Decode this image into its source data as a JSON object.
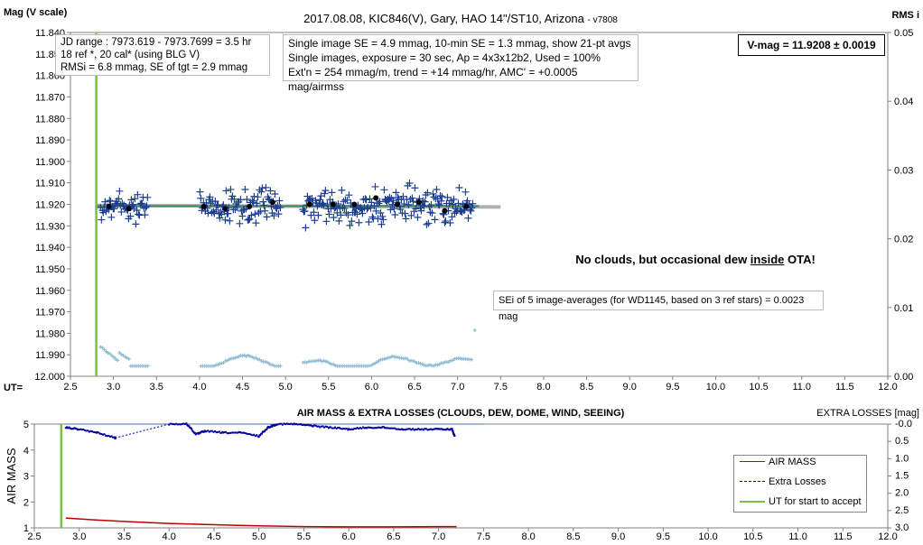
{
  "chart_data": [
    {
      "type": "scatter",
      "title": "2017.08.08,  KIC846(V),  Gary,  HAO 14\"/ST10, Arizona",
      "version": "- v7808",
      "ylabel": "Mag (V scale)",
      "y2label": "RMS i",
      "xlabel": "UT=",
      "xlim": [
        2.5,
        12.0
      ],
      "ylim": [
        11.84,
        12.0
      ],
      "y_inverted": true,
      "y2lim": [
        0,
        0.05
      ],
      "x_ticks": [
        "2.5",
        "3.0",
        "3.5",
        "4.0",
        "4.5",
        "5.0",
        "5.5",
        "6.0",
        "6.5",
        "7.0",
        "7.5",
        "8.0",
        "8.5",
        "9.0",
        "9.5",
        "10.0",
        "10.5",
        "11.0",
        "11.5",
        "12.0"
      ],
      "y_ticks": [
        "11.840",
        "11.850",
        "11.860",
        "11.870",
        "11.880",
        "11.890",
        "11.900",
        "11.910",
        "11.920",
        "11.930",
        "11.940",
        "11.950",
        "11.960",
        "11.970",
        "11.980",
        "11.990",
        "12.000"
      ],
      "y2_ticks": [
        "0.05",
        "0.04",
        "0.03",
        "0.02",
        "0.01",
        "0.00"
      ],
      "accept_start_ut": 2.8,
      "mean_mag": 11.9208,
      "fit_line": {
        "x_start": 2.8,
        "x_end": 7.5,
        "y_start": 11.9205,
        "y_end": 11.9212
      },
      "gaps": [
        [
          3.4,
          4.0
        ],
        [
          4.95,
          5.2
        ]
      ],
      "series": [
        {
          "role": "single images",
          "marker": "plus",
          "x_range": [
            2.85,
            7.18
          ],
          "y_range": [
            11.906,
            11.935
          ]
        },
        {
          "role": "21-pt avgs",
          "marker": "dot",
          "x": [
            2.95,
            3.18,
            4.05,
            4.3,
            4.58,
            4.85,
            5.28,
            5.55,
            5.8,
            6.05,
            6.3,
            6.55,
            6.85,
            7.1
          ],
          "y": [
            11.921,
            11.922,
            11.921,
            11.922,
            11.921,
            11.919,
            11.92,
            11.92,
            11.92,
            11.917,
            11.92,
            11.919,
            11.923,
            11.921
          ]
        },
        {
          "role": "RMS i",
          "axis": "right",
          "marker": "plus",
          "x_range": [
            2.85,
            7.18
          ],
          "y2_range": [
            0.0015,
            0.0045
          ]
        }
      ],
      "annotations": [
        "JD range : 7973.619 - 7973.7699 = 3.5 hr",
        "18 ref *, 20 cal* (using BLG V)",
        "RMSi = 6.8 mmag, SE of tgt = 2.9 mmag",
        "Single image SE = 4.9 mmag, 10-min SE = 1.3 mmag, show 21-pt avgs",
        "Single images, exposure = 30 sec, Ap = 4x3x12b2, Used = 100%",
        "Ext'n = 254 mmag/m, trend = +14 mmag/hr, AMC' = +0.0005 mag/airmss",
        "V-mag = 11.9208 ± 0.0019",
        "No clouds, but occasional dew inside OTA!",
        "SEi of 5 image-averages (for WD1145, based on 3 ref stars) = 0.0023 mag"
      ]
    },
    {
      "type": "line",
      "title": "AIR MASS & EXTRA LOSSES (CLOUDS, DEW, DOME, WIND, SEEING)",
      "ylabel": "AIR MASS",
      "y2label": "EXTRA LOSSES [mag]",
      "xlim": [
        2.5,
        12.0
      ],
      "ylim": [
        1,
        5
      ],
      "y2lim": [
        0.0,
        3.0
      ],
      "y2_inverted": true,
      "x_ticks": [
        "2.5",
        "3.0",
        "3.5",
        "4.0",
        "4.5",
        "5.0",
        "5.5",
        "6.0",
        "6.5",
        "7.0",
        "7.5",
        "8.0",
        "8.5",
        "9.0",
        "9.5",
        "10.0",
        "10.5",
        "11.0",
        "11.5",
        "12.0"
      ],
      "y_ticks": [
        "5",
        "4",
        "3",
        "2",
        "1"
      ],
      "y2_ticks": [
        "-0.0",
        "0.5",
        "1.0",
        "1.5",
        "2.0",
        "2.5",
        "3.0"
      ],
      "accept_start_ut": 2.8,
      "series": [
        {
          "name": "AIR MASS",
          "color": "#c00000",
          "x": [
            2.85,
            3.2,
            3.6,
            4.0,
            4.5,
            5.0,
            5.5,
            6.0,
            6.5,
            7.0,
            7.2
          ],
          "y": [
            1.38,
            1.3,
            1.23,
            1.17,
            1.12,
            1.08,
            1.05,
            1.04,
            1.04,
            1.05,
            1.05
          ]
        },
        {
          "name": "Extra Losses",
          "color": "#0000a0",
          "dashed": true,
          "x": [
            2.85,
            3.0,
            3.2,
            3.4,
            3.4,
            4.0,
            4.2,
            4.3,
            4.4,
            4.6,
            4.8,
            5.0,
            5.1,
            5.2,
            5.4,
            5.6,
            5.8,
            6.0,
            6.2,
            6.4,
            6.6,
            6.8,
            7.0,
            7.15,
            7.18
          ],
          "y2": [
            0.1,
            0.15,
            0.25,
            0.4,
            0.4,
            0.0,
            0.0,
            0.3,
            0.2,
            0.25,
            0.25,
            0.35,
            0.1,
            0.0,
            0.0,
            0.05,
            0.1,
            0.15,
            0.1,
            0.1,
            0.15,
            0.15,
            0.15,
            0.15,
            0.35
          ]
        },
        {
          "name": "UT for start to accept",
          "color": "#7ac143"
        }
      ],
      "reference_line": {
        "y2": 0.0,
        "x_start": 2.85,
        "x_end": 7.5,
        "color": "#4a6fa5"
      },
      "legend": "bottom-right"
    }
  ]
}
